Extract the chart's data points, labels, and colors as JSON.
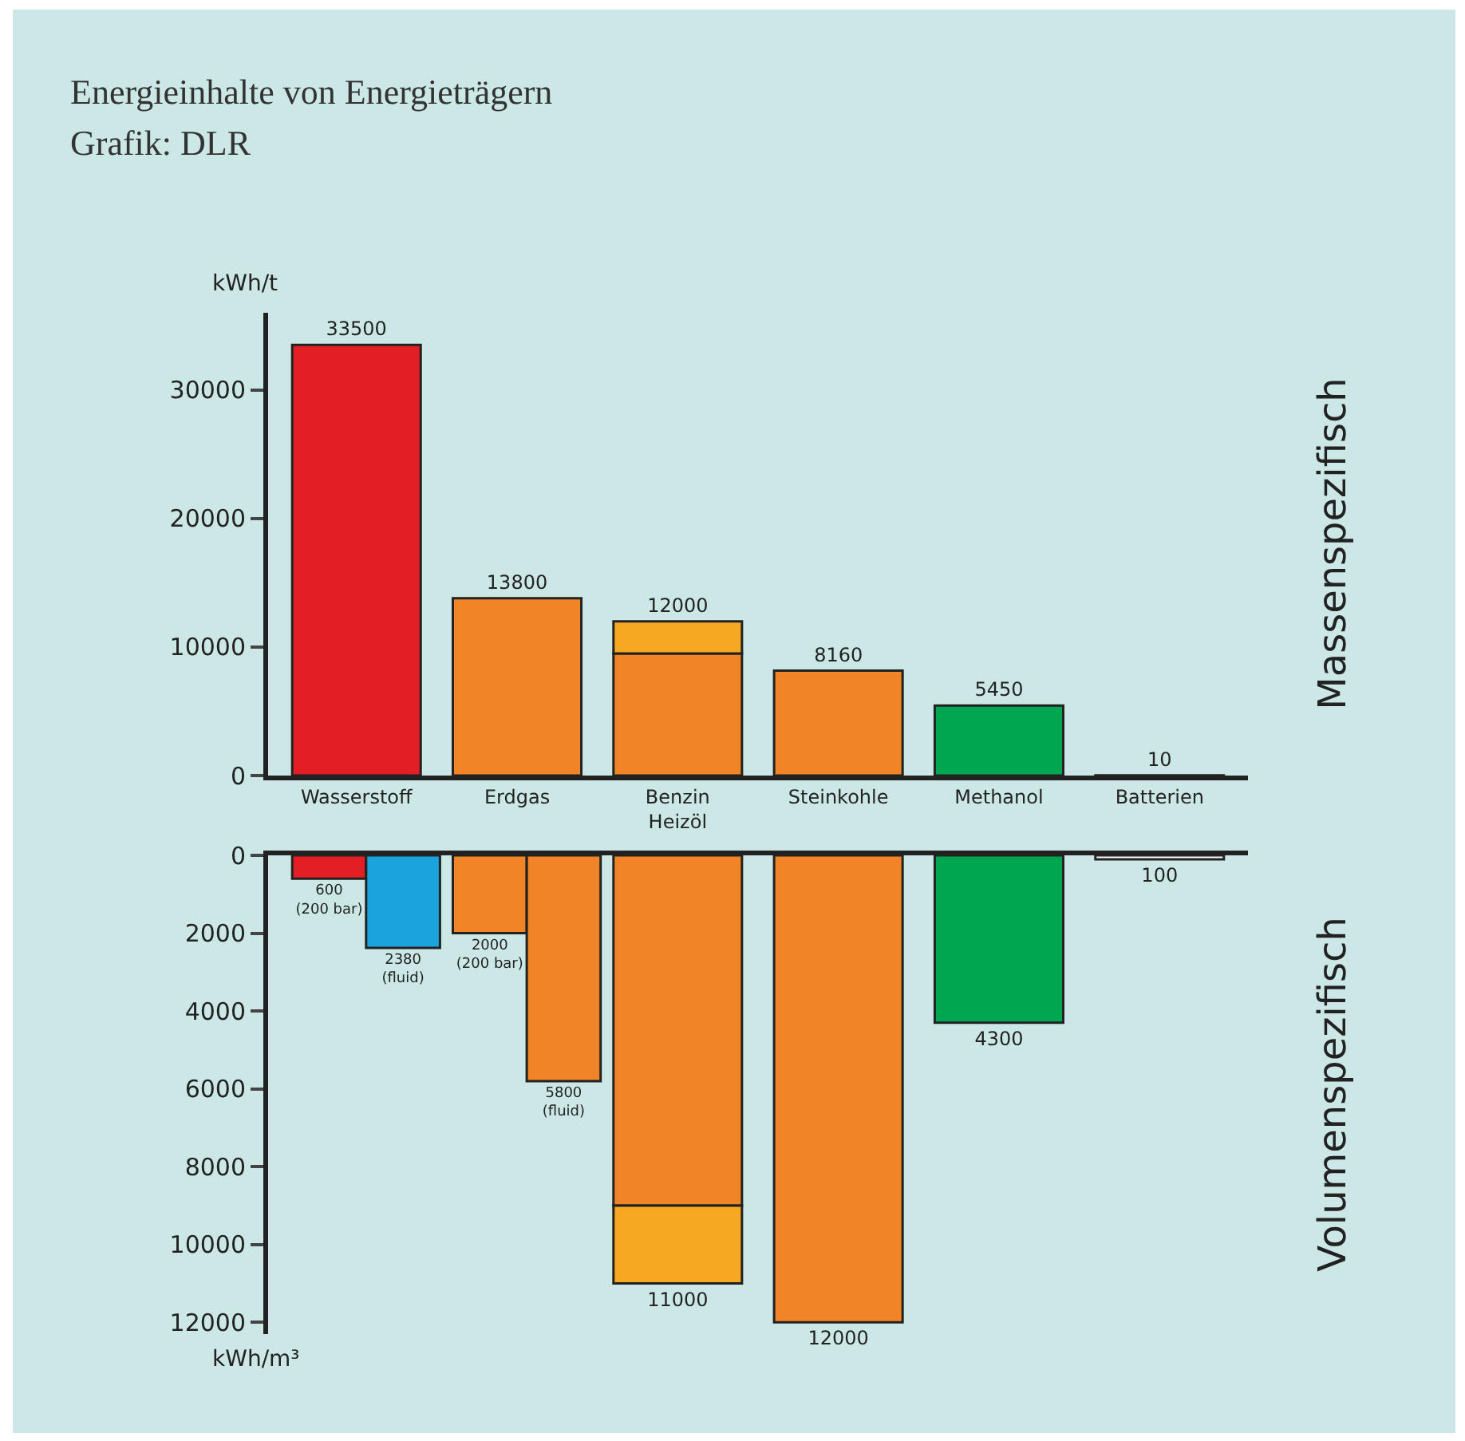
{
  "chart_data": [
    {
      "type": "bar",
      "title": "Energieinhalte von Energieträgern",
      "subtitle": "Grafik: DLR",
      "ylabel": "kWh/t",
      "annotations": [
        "Massenspezifisch"
      ],
      "categories": [
        "Wasserstoff",
        "Erdgas",
        "Benzin\nHeizöl",
        "Steinkohle",
        "Methanol",
        "Batterien"
      ],
      "series": [
        {
          "colors": [
            "#e31e24",
            "#f18426",
            "#f18426",
            "#f18426",
            "#00a650",
            "#ffffff"
          ],
          "values": [
            33500,
            13800,
            9500,
            8160,
            5450,
            10
          ],
          "value_labels": [
            "33500",
            "13800",
            null,
            "8160",
            "5450",
            "10"
          ]
        },
        {
          "color": "#f7a823",
          "values": [
            null,
            null,
            2500,
            null,
            null,
            null
          ],
          "base": [
            null,
            null,
            9500,
            null,
            null,
            null
          ],
          "value_labels": [
            null,
            null,
            "12000",
            null,
            null,
            null
          ]
        }
      ],
      "ylim": [
        0,
        36000
      ],
      "yticks": [
        0,
        10000,
        20000,
        30000
      ],
      "tick_labels": "xy"
    },
    {
      "type": "bar",
      "ylabel": "kWh/m³",
      "annotations": [
        "Volumenspezifisch"
      ],
      "categories": [
        null,
        null,
        null,
        null,
        null,
        null
      ],
      "series": [
        {
          "colors": [
            "#e31e24",
            "#f18426",
            "#f18426",
            "#f18426",
            "#00a650",
            "#ffffff"
          ],
          "values": [
            600,
            2000,
            9000,
            12000,
            4300,
            100
          ],
          "value_labels": [
            "600\n(200 bar)",
            "2000\n(200 bar)",
            null,
            "12000",
            "4300",
            "100"
          ]
        },
        {
          "colors": [
            "#1aa3dc",
            "#f18426",
            null,
            null,
            null,
            null
          ],
          "values": [
            2380,
            5800,
            null,
            null,
            null,
            null
          ],
          "value_labels": [
            "2380\n(fluid)",
            "5800\n(fluid)",
            null,
            null,
            null,
            null
          ]
        },
        {
          "color": "#f7a823",
          "values": [
            null,
            null,
            2000,
            null,
            null,
            null
          ],
          "base": [
            null,
            null,
            9000,
            null,
            null,
            null
          ],
          "value_labels": [
            null,
            null,
            "11000",
            null,
            null,
            null
          ]
        }
      ],
      "ylim": [
        12300,
        0
      ],
      "yticks": [
        0,
        2000,
        4000,
        6000,
        8000,
        10000,
        12000
      ],
      "tick_labels": "y"
    }
  ]
}
